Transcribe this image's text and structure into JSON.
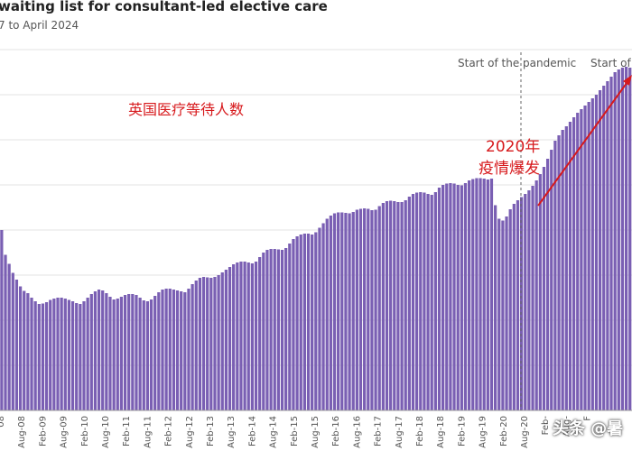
{
  "header": {
    "title": "waiting list for consultant-led elective care",
    "subtitle": "7 to April 2024"
  },
  "colors": {
    "bar": "#7a5fb3",
    "annotation_red": "#d7191c",
    "grid": "#e3e3e3",
    "label": "#555555"
  },
  "annotations": {
    "pandemic_label": "Start of the pandemic",
    "start_of_label": "Start of",
    "chinese_title": "英国医疗等待人数",
    "covid_year": "2020年",
    "covid_note": "疫情爆发"
  },
  "watermark": "头条 @暑",
  "chart_data": {
    "type": "bar",
    "title": "waiting list for consultant-led elective care",
    "subtitle": "7 to April 2024",
    "x_tick_labels": [
      "08",
      "Aug-08",
      "Feb-09",
      "Aug-09",
      "Feb-10",
      "Aug-10",
      "Feb-11",
      "Aug-11",
      "Feb-12",
      "Aug-12",
      "Feb-13",
      "Aug-13",
      "Feb-14",
      "Aug-14",
      "Feb-15",
      "Aug-15",
      "Feb-16",
      "Aug-16",
      "Feb-17",
      "Aug-17",
      "Feb-18",
      "Aug-18",
      "Feb-19",
      "Aug-19",
      "Feb-20",
      "Aug-20",
      "Feb-",
      "Aug-",
      "F"
    ],
    "ylim": [
      0,
      8
    ],
    "grid": true,
    "series": [
      {
        "values": [
          4.0,
          3.45,
          3.25,
          3.05,
          2.9,
          2.75,
          2.65,
          2.6,
          2.5,
          2.42,
          2.36,
          2.37,
          2.4,
          2.45,
          2.48,
          2.5,
          2.5,
          2.48,
          2.45,
          2.42,
          2.38,
          2.36,
          2.42,
          2.5,
          2.58,
          2.64,
          2.68,
          2.66,
          2.6,
          2.52,
          2.46,
          2.48,
          2.52,
          2.56,
          2.58,
          2.58,
          2.56,
          2.5,
          2.44,
          2.42,
          2.46,
          2.54,
          2.62,
          2.68,
          2.7,
          2.7,
          2.68,
          2.66,
          2.64,
          2.62,
          2.7,
          2.8,
          2.88,
          2.94,
          2.96,
          2.95,
          2.94,
          2.96,
          3.0,
          3.06,
          3.12,
          3.18,
          3.24,
          3.28,
          3.3,
          3.3,
          3.28,
          3.26,
          3.3,
          3.4,
          3.5,
          3.56,
          3.58,
          3.58,
          3.57,
          3.56,
          3.6,
          3.7,
          3.8,
          3.86,
          3.9,
          3.92,
          3.92,
          3.9,
          3.95,
          4.05,
          4.15,
          4.25,
          4.32,
          4.37,
          4.39,
          4.39,
          4.38,
          4.37,
          4.4,
          4.45,
          4.47,
          4.48,
          4.47,
          4.44,
          4.45,
          4.53,
          4.6,
          4.64,
          4.65,
          4.64,
          4.62,
          4.62,
          4.66,
          4.74,
          4.8,
          4.83,
          4.84,
          4.83,
          4.8,
          4.78,
          4.84,
          4.94,
          5.0,
          5.03,
          5.04,
          5.03,
          5.0,
          4.99,
          5.04,
          5.1,
          5.13,
          5.15,
          5.15,
          5.14,
          5.12,
          5.14,
          4.55,
          4.25,
          4.21,
          4.3,
          4.46,
          4.58,
          4.66,
          4.73,
          4.8,
          4.88,
          4.98,
          5.1,
          5.24,
          5.4,
          5.58,
          5.78,
          5.98,
          6.1,
          6.22,
          6.3,
          6.4,
          6.5,
          6.6,
          6.68,
          6.76,
          6.84,
          6.92,
          7.0,
          7.1,
          7.2,
          7.3,
          7.4,
          7.5,
          7.56,
          7.6,
          7.62,
          7.6
        ]
      }
    ],
    "annotations": [
      {
        "text": "Start of the pandemic",
        "at": "Feb-20"
      },
      {
        "text": "英国医疗等待人数"
      },
      {
        "text": "2020年 疫情爆发"
      }
    ]
  }
}
